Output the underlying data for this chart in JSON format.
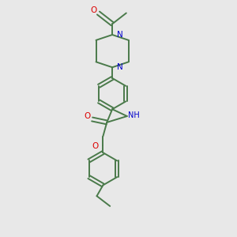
{
  "bg_color": "#e8e8e8",
  "bond_color": "#4a7a4a",
  "N_color": "#0000cc",
  "O_color": "#dd0000",
  "line_width": 1.4,
  "figsize": [
    3.0,
    3.0
  ],
  "dpi": 100,
  "xlim": [
    0.5,
    2.5
  ],
  "ylim": [
    0.1,
    3.1
  ]
}
